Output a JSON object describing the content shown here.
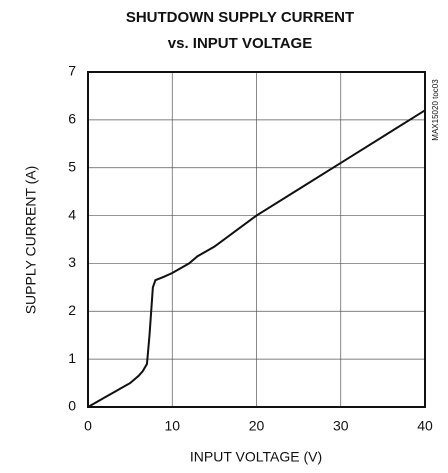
{
  "chart_data": {
    "type": "line",
    "title": [
      "SHUTDOWN SUPPLY CURRENT",
      "vs. INPUT VOLTAGE"
    ],
    "x_label": "INPUT VOLTAGE (V)",
    "y_label": "SUPPLY CURRENT (A)",
    "annotation": "MAX15020 toc03",
    "x": [
      0,
      2,
      3,
      5,
      6,
      6.5,
      7,
      7.3,
      7.5,
      7.7,
      8,
      9,
      10,
      12,
      13,
      15,
      20,
      25,
      30,
      35,
      40
    ],
    "series": [
      {
        "name": "supply current",
        "color": "#111111",
        "values": [
          0,
          0.2,
          0.3,
          0.5,
          0.65,
          0.75,
          0.9,
          1.5,
          2.0,
          2.5,
          2.65,
          2.72,
          2.8,
          3.0,
          3.15,
          3.35,
          4.0,
          4.55,
          5.1,
          5.65,
          6.2
        ]
      }
    ],
    "xlim": [
      0,
      40
    ],
    "xticks": [
      0,
      10,
      20,
      30,
      40
    ],
    "ylim": [
      0,
      7
    ],
    "yticks": [
      0,
      1,
      2,
      3,
      4,
      5,
      6,
      7
    ],
    "grid": true,
    "legend": false
  }
}
